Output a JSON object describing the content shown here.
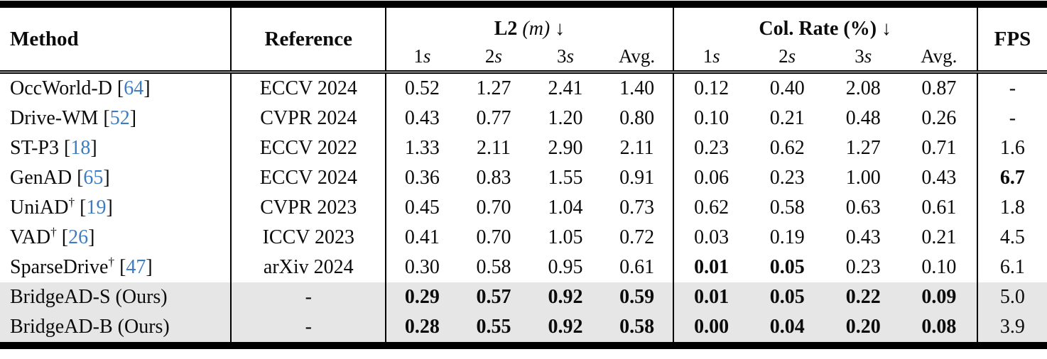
{
  "table": {
    "header": {
      "method": "Method",
      "reference": "Reference",
      "fps": "FPS",
      "groups": [
        {
          "name": "L2",
          "unit": "(m)",
          "arrow": "↓",
          "subs": [
            {
              "t": "1",
              "suffix": "s"
            },
            {
              "t": "2",
              "suffix": "s"
            },
            {
              "t": "3",
              "suffix": "s"
            },
            {
              "t": "Avg.",
              "suffix": ""
            }
          ]
        },
        {
          "name": "Col. Rate",
          "unit": "(%)",
          "arrow": "↓",
          "subs": [
            {
              "t": "1",
              "suffix": "s"
            },
            {
              "t": "2",
              "suffix": "s"
            },
            {
              "t": "3",
              "suffix": "s"
            },
            {
              "t": "Avg.",
              "suffix": ""
            }
          ]
        }
      ]
    },
    "rows": [
      {
        "method": "OccWorld-D",
        "dagger": false,
        "cite": "64",
        "reference": "ECCV 2024",
        "l2": [
          "0.52",
          "1.27",
          "2.41",
          "1.40"
        ],
        "l2_bold": [
          0,
          0,
          0,
          0
        ],
        "col": [
          "0.12",
          "0.40",
          "2.08",
          "0.87"
        ],
        "col_bold": [
          0,
          0,
          0,
          0
        ],
        "fps": "-",
        "fps_bold": 0,
        "highlight": false
      },
      {
        "method": "Drive-WM",
        "dagger": false,
        "cite": "52",
        "reference": "CVPR 2024",
        "l2": [
          "0.43",
          "0.77",
          "1.20",
          "0.80"
        ],
        "l2_bold": [
          0,
          0,
          0,
          0
        ],
        "col": [
          "0.10",
          "0.21",
          "0.48",
          "0.26"
        ],
        "col_bold": [
          0,
          0,
          0,
          0
        ],
        "fps": "-",
        "fps_bold": 0,
        "highlight": false
      },
      {
        "method": "ST-P3",
        "dagger": false,
        "cite": "18",
        "reference": "ECCV 2022",
        "l2": [
          "1.33",
          "2.11",
          "2.90",
          "2.11"
        ],
        "l2_bold": [
          0,
          0,
          0,
          0
        ],
        "col": [
          "0.23",
          "0.62",
          "1.27",
          "0.71"
        ],
        "col_bold": [
          0,
          0,
          0,
          0
        ],
        "fps": "1.6",
        "fps_bold": 0,
        "highlight": false
      },
      {
        "method": "GenAD",
        "dagger": false,
        "cite": "65",
        "reference": "ECCV 2024",
        "l2": [
          "0.36",
          "0.83",
          "1.55",
          "0.91"
        ],
        "l2_bold": [
          0,
          0,
          0,
          0
        ],
        "col": [
          "0.06",
          "0.23",
          "1.00",
          "0.43"
        ],
        "col_bold": [
          0,
          0,
          0,
          0
        ],
        "fps": "6.7",
        "fps_bold": 1,
        "highlight": false
      },
      {
        "method": "UniAD",
        "dagger": true,
        "cite": "19",
        "reference": "CVPR 2023",
        "l2": [
          "0.45",
          "0.70",
          "1.04",
          "0.73"
        ],
        "l2_bold": [
          0,
          0,
          0,
          0
        ],
        "col": [
          "0.62",
          "0.58",
          "0.63",
          "0.61"
        ],
        "col_bold": [
          0,
          0,
          0,
          0
        ],
        "fps": "1.8",
        "fps_bold": 0,
        "highlight": false
      },
      {
        "method": "VAD",
        "dagger": true,
        "cite": "26",
        "reference": "ICCV 2023",
        "l2": [
          "0.41",
          "0.70",
          "1.05",
          "0.72"
        ],
        "l2_bold": [
          0,
          0,
          0,
          0
        ],
        "col": [
          "0.03",
          "0.19",
          "0.43",
          "0.21"
        ],
        "col_bold": [
          0,
          0,
          0,
          0
        ],
        "fps": "4.5",
        "fps_bold": 0,
        "highlight": false
      },
      {
        "method": "SparseDrive",
        "dagger": true,
        "cite": "47",
        "reference": "arXiv 2024",
        "l2": [
          "0.30",
          "0.58",
          "0.95",
          "0.61"
        ],
        "l2_bold": [
          0,
          0,
          0,
          0
        ],
        "col": [
          "0.01",
          "0.05",
          "0.23",
          "0.10"
        ],
        "col_bold": [
          1,
          1,
          0,
          0
        ],
        "fps": "6.1",
        "fps_bold": 0,
        "highlight": false
      },
      {
        "method": "BridgeAD-S (Ours)",
        "dagger": false,
        "cite": null,
        "reference": "-",
        "l2": [
          "0.29",
          "0.57",
          "0.92",
          "0.59"
        ],
        "l2_bold": [
          1,
          1,
          1,
          1
        ],
        "col": [
          "0.01",
          "0.05",
          "0.22",
          "0.09"
        ],
        "col_bold": [
          1,
          1,
          1,
          1
        ],
        "fps": "5.0",
        "fps_bold": 0,
        "highlight": true
      },
      {
        "method": "BridgeAD-B (Ours)",
        "dagger": false,
        "cite": null,
        "reference": "-",
        "l2": [
          "0.28",
          "0.55",
          "0.92",
          "0.58"
        ],
        "l2_bold": [
          1,
          1,
          1,
          1
        ],
        "col": [
          "0.00",
          "0.04",
          "0.20",
          "0.08"
        ],
        "col_bold": [
          1,
          1,
          1,
          1
        ],
        "fps": "3.9",
        "fps_bold": 0,
        "highlight": true
      }
    ],
    "colors": {
      "citation_blue": "#3f7cbe",
      "highlight_gray": "#e6e6e6",
      "rule_black": "#000000"
    },
    "symbols": {
      "dagger": "†",
      "bracket_open": "[",
      "bracket_close": "]"
    }
  }
}
